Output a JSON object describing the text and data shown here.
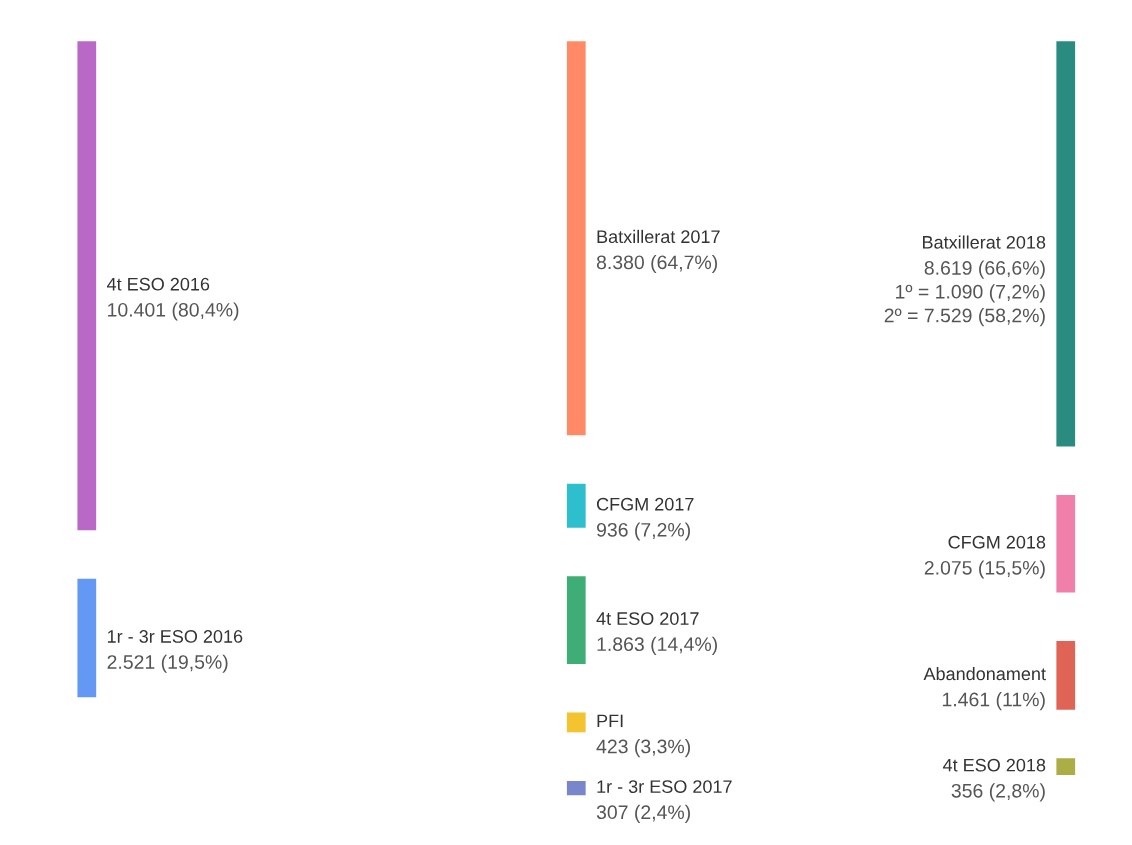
{
  "chart_data": {
    "type": "other",
    "categories": [
      "4t ESO 2016",
      "1r - 3r ESO 2016",
      "Batxillerat 2017",
      "CFGM 2017",
      "4t ESO 2017",
      "PFI",
      "1r - 3r ESO 2017",
      "Batxillerat 2018",
      "CFGM 2018",
      "Abandonament",
      "4t ESO 2018"
    ],
    "series": [
      {
        "values": [
          10401,
          2521,
          null,
          null,
          null,
          null,
          null,
          null,
          null,
          null,
          null
        ],
        "colors": [
          "#ba68c8",
          "#6399f5",
          null,
          null,
          null,
          null,
          null,
          null,
          null,
          null,
          null
        ],
        "value_labels": [
          "10.401 (80,4%)",
          "2.521 (19,5%)",
          null,
          null,
          null,
          null,
          null,
          null,
          null,
          null,
          null
        ]
      },
      {
        "values": [
          null,
          null,
          8380,
          936,
          1863,
          423,
          307,
          null,
          null,
          null,
          null
        ],
        "colors": [
          null,
          null,
          "#ff8a65",
          "#2ebfcf",
          "#3fae76",
          "#f4c430",
          "#7986cb",
          null,
          null,
          null,
          null
        ],
        "value_labels": [
          null,
          null,
          "8.380 (64,7%)",
          "936 (7,2%)",
          "1.863 (14,4%)",
          "423 (3,3%)",
          "307 (2,4%)",
          null,
          null,
          null,
          null
        ]
      },
      {
        "values": [
          null,
          null,
          null,
          null,
          null,
          null,
          null,
          8619,
          2075,
          1461,
          356
        ],
        "colors": [
          null,
          null,
          null,
          null,
          null,
          null,
          null,
          "#2a8c80",
          "#f07fa9",
          "#e06455",
          "#adad45"
        ],
        "value_labels": [
          null,
          null,
          null,
          null,
          null,
          null,
          null,
          "8.619 (66,6%)\n1º = 1.090 (7,2%)\n2º = 7.529 (58,2%)",
          "2.075 (15,5%)",
          "1.461 (11%)",
          "356 (2,8%)"
        ]
      }
    ]
  }
}
